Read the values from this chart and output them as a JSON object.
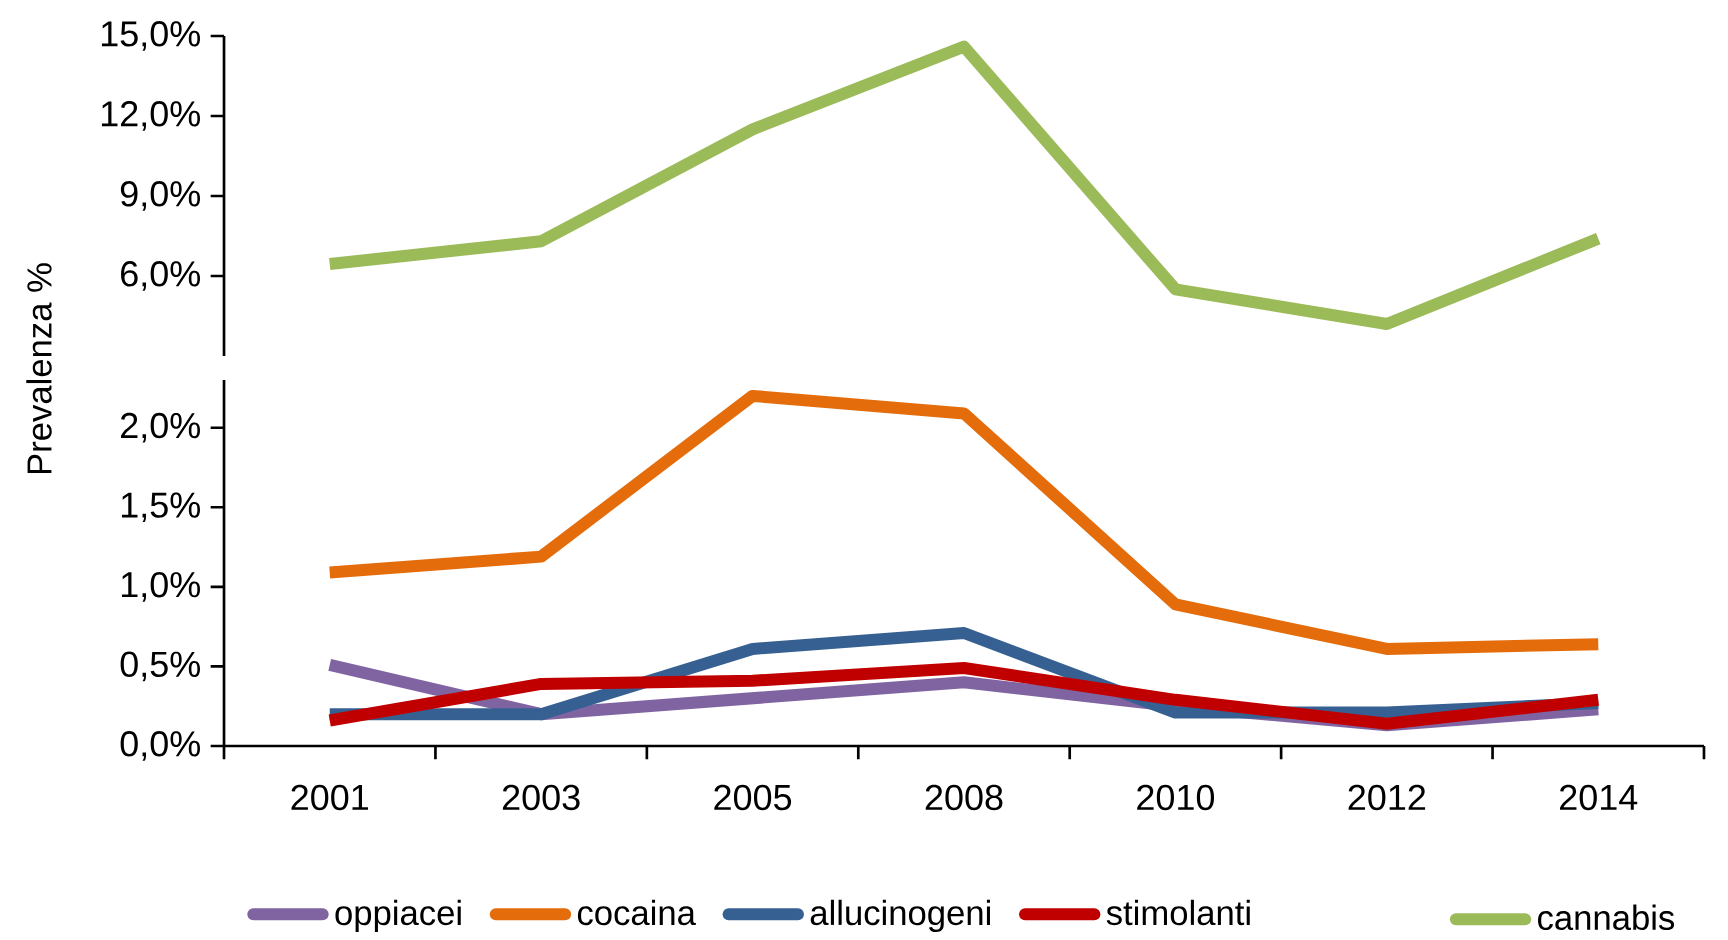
{
  "chart_data": [
    {
      "type": "line",
      "categories": [
        "2001",
        "2003",
        "2005",
        "2008",
        "2010",
        "2012",
        "2014"
      ],
      "tick_labels": "y",
      "legend": "bottom",
      "ylim": [
        3,
        15
      ],
      "yticks": [
        {
          "value": 6,
          "label": "6,0%"
        },
        {
          "value": 9,
          "label": "9,0%"
        },
        {
          "value": 12,
          "label": "12,0%"
        },
        {
          "value": 15,
          "label": "15,0%"
        }
      ],
      "series": [
        {
          "name": "cannabis",
          "color": "#9bbb59",
          "values": [
            6.45,
            7.3,
            11.5,
            14.6,
            5.5,
            4.2,
            7.4
          ]
        }
      ]
    },
    {
      "type": "line",
      "ylabel": "Prevalenza %",
      "categories": [
        "2001",
        "2003",
        "2005",
        "2008",
        "2010",
        "2012",
        "2014"
      ],
      "legend": "bottom",
      "ylim": [
        0,
        2.3
      ],
      "yticks": [
        {
          "value": 0,
          "label": "0,0%"
        },
        {
          "value": 0.5,
          "label": "0,5%"
        },
        {
          "value": 1,
          "label": "1,0%"
        },
        {
          "value": 1.5,
          "label": "1,5%"
        },
        {
          "value": 2,
          "label": "2,0%"
        }
      ],
      "series": [
        {
          "name": "oppiacei",
          "color": "#8064a2",
          "values": [
            0.51,
            0.2,
            0.3,
            0.4,
            0.25,
            0.13,
            0.23
          ]
        },
        {
          "name": "cocaina",
          "color": "#e46c0a",
          "values": [
            1.09,
            1.19,
            2.2,
            2.09,
            0.89,
            0.61,
            0.64
          ]
        },
        {
          "name": "allucinogeni",
          "color": "#376092",
          "values": [
            0.2,
            0.2,
            0.61,
            0.71,
            0.21,
            0.21,
            0.27
          ]
        },
        {
          "name": "stimolanti",
          "color": "#c00000",
          "values": [
            0.16,
            0.39,
            0.41,
            0.49,
            0.29,
            0.14,
            0.29
          ]
        }
      ]
    }
  ]
}
